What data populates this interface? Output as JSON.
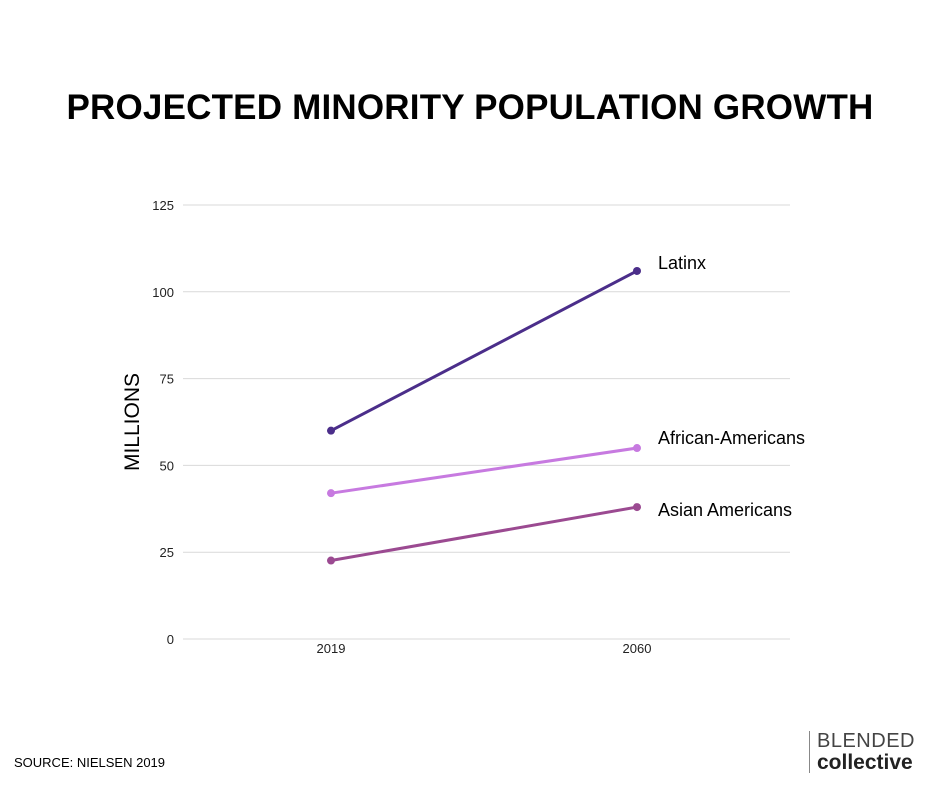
{
  "colors": {
    "grid": "#d9d9d9",
    "latinx": "#4b2e8a",
    "african_americans": "#c77ae0",
    "asian_americans": "#9b4a91"
  },
  "source": "SOURCE: NIELSEN 2019",
  "brand": {
    "line1": "BLENDED",
    "line2": "collective"
  },
  "chart_data": {
    "type": "line",
    "title": "PROJECTED MINORITY POPULATION GROWTH",
    "xlabel": "",
    "ylabel": "MILLIONS",
    "categories": [
      "2019",
      "2060"
    ],
    "yticks": [
      "0",
      "25",
      "50",
      "75",
      "100",
      "125"
    ],
    "ylim": [
      0,
      125
    ],
    "grid": true,
    "legend": "direct labels at line ends",
    "series": [
      {
        "name": "Latinx",
        "values": [
          60,
          106
        ],
        "color": "#4b2e8a"
      },
      {
        "name": "African-Americans",
        "values": [
          42,
          55
        ],
        "color": "#c77ae0"
      },
      {
        "name": "Asian Americans",
        "values": [
          22.6,
          38
        ],
        "color": "#9b4a91"
      }
    ]
  }
}
